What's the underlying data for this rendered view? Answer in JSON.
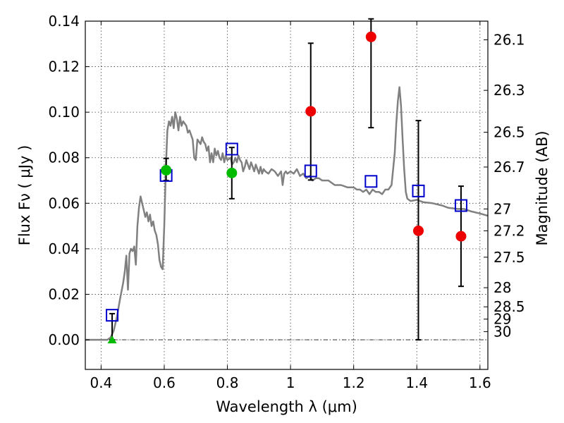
{
  "chart_data": {
    "type": "scatter",
    "title": "",
    "xlabel": "Wavelength  λ (μm)",
    "ylabel": "Flux  Fν  ( μJy )",
    "ylabel_right": "Magnitude (AB)",
    "xlim": [
      0.35,
      1.625
    ],
    "ylim": [
      -0.013,
      0.14
    ],
    "grid": true,
    "x_ticks": [
      0.4,
      0.6,
      0.8,
      1.0,
      1.2,
      1.4,
      1.6
    ],
    "x_tick_labels": [
      "0.4",
      "0.6",
      "0.8",
      "1",
      "1.2",
      "1.4",
      "1.6"
    ],
    "y_ticks": [
      0.0,
      0.02,
      0.04,
      0.06,
      0.08,
      0.1,
      0.12,
      0.14
    ],
    "y_tick_labels": [
      "0.00",
      "0.02",
      "0.04",
      "0.06",
      "0.08",
      "0.10",
      "0.12",
      "0.14"
    ],
    "right_ticks": [
      {
        "label": "26.1",
        "flux": 0.1318
      },
      {
        "label": "26.3",
        "flux": 0.1096
      },
      {
        "label": "26.5",
        "flux": 0.0912
      },
      {
        "label": "26.7",
        "flux": 0.0759
      },
      {
        "label": "27",
        "flux": 0.0575
      },
      {
        "label": "27.2",
        "flux": 0.0479
      },
      {
        "label": "27.5",
        "flux": 0.0363
      },
      {
        "label": "28",
        "flux": 0.0229
      },
      {
        "label": "28.5",
        "flux": 0.0145
      },
      {
        "label": "29",
        "flux": 0.0091
      },
      {
        "label": "30",
        "flux": 0.0036
      }
    ],
    "series": [
      {
        "marker": "open-square",
        "color": "#0000cc",
        "points": [
          {
            "x": 0.435,
            "y": 0.0108
          },
          {
            "x": 0.606,
            "y": 0.0722
          },
          {
            "x": 0.814,
            "y": 0.0838
          },
          {
            "x": 1.064,
            "y": 0.0742
          },
          {
            "x": 1.255,
            "y": 0.0696
          },
          {
            "x": 1.405,
            "y": 0.0654
          },
          {
            "x": 1.54,
            "y": 0.059
          }
        ]
      },
      {
        "marker": "circle",
        "color": "#00bb00",
        "points": [
          {
            "x": 0.606,
            "y": 0.0745,
            "yerr_lo": 0.07,
            "yerr_hi": 0.0797
          },
          {
            "x": 0.814,
            "y": 0.0733,
            "yerr_lo": 0.062,
            "yerr_hi": 0.0845
          }
        ]
      },
      {
        "marker": "circle",
        "color": "#ee0000",
        "points": [
          {
            "x": 1.064,
            "y": 0.1004,
            "yerr_lo": 0.0702,
            "yerr_hi": 0.1303
          },
          {
            "x": 1.255,
            "y": 0.1331,
            "yerr_lo": 0.0932,
            "yerr_hi": 0.141
          },
          {
            "x": 1.405,
            "y": 0.0479,
            "yerr_lo": 0.0,
            "yerr_hi": 0.0963
          },
          {
            "x": 1.54,
            "y": 0.0455,
            "yerr_lo": 0.0235,
            "yerr_hi": 0.0675
          }
        ]
      },
      {
        "marker": "triangle",
        "color": "#00bb00",
        "points": [
          {
            "x": 0.435,
            "y": 0.0,
            "yerr_lo": 0.0,
            "yerr_hi": 0.0115
          }
        ]
      },
      {
        "marker": "line",
        "color": "#808080",
        "points_xy": [
          [
            0.35,
            0.0
          ],
          [
            0.42,
            0.0
          ],
          [
            0.43,
            0.001
          ],
          [
            0.44,
            0.004
          ],
          [
            0.45,
            0.01
          ],
          [
            0.46,
            0.018
          ],
          [
            0.47,
            0.025
          ],
          [
            0.475,
            0.03
          ],
          [
            0.48,
            0.037
          ],
          [
            0.485,
            0.022
          ],
          [
            0.49,
            0.038
          ],
          [
            0.495,
            0.04
          ],
          [
            0.5,
            0.039
          ],
          [
            0.505,
            0.041
          ],
          [
            0.51,
            0.033
          ],
          [
            0.515,
            0.05
          ],
          [
            0.52,
            0.058
          ],
          [
            0.525,
            0.063
          ],
          [
            0.53,
            0.06
          ],
          [
            0.535,
            0.057
          ],
          [
            0.54,
            0.054
          ],
          [
            0.545,
            0.056
          ],
          [
            0.55,
            0.052
          ],
          [
            0.555,
            0.055
          ],
          [
            0.56,
            0.05
          ],
          [
            0.565,
            0.052
          ],
          [
            0.57,
            0.048
          ],
          [
            0.575,
            0.046
          ],
          [
            0.58,
            0.042
          ],
          [
            0.585,
            0.035
          ],
          [
            0.59,
            0.032
          ],
          [
            0.595,
            0.031
          ],
          [
            0.6,
            0.05
          ],
          [
            0.605,
            0.075
          ],
          [
            0.61,
            0.092
          ],
          [
            0.615,
            0.096
          ],
          [
            0.62,
            0.094
          ],
          [
            0.625,
            0.098
          ],
          [
            0.63,
            0.093
          ],
          [
            0.635,
            0.1
          ],
          [
            0.64,
            0.097
          ],
          [
            0.645,
            0.092
          ],
          [
            0.65,
            0.098
          ],
          [
            0.655,
            0.094
          ],
          [
            0.66,
            0.096
          ],
          [
            0.665,
            0.095
          ],
          [
            0.67,
            0.094
          ],
          [
            0.675,
            0.091
          ],
          [
            0.68,
            0.092
          ],
          [
            0.685,
            0.09
          ],
          [
            0.69,
            0.088
          ],
          [
            0.695,
            0.08
          ],
          [
            0.7,
            0.079
          ],
          [
            0.705,
            0.088
          ],
          [
            0.71,
            0.087
          ],
          [
            0.715,
            0.086
          ],
          [
            0.72,
            0.089
          ],
          [
            0.725,
            0.087
          ],
          [
            0.73,
            0.086
          ],
          [
            0.735,
            0.083
          ],
          [
            0.74,
            0.085
          ],
          [
            0.745,
            0.078
          ],
          [
            0.75,
            0.082
          ],
          [
            0.755,
            0.078
          ],
          [
            0.76,
            0.084
          ],
          [
            0.765,
            0.081
          ],
          [
            0.77,
            0.083
          ],
          [
            0.775,
            0.08
          ],
          [
            0.78,
            0.079
          ],
          [
            0.785,
            0.082
          ],
          [
            0.79,
            0.078
          ],
          [
            0.795,
            0.081
          ],
          [
            0.8,
            0.079
          ],
          [
            0.81,
            0.08
          ],
          [
            0.815,
            0.077
          ],
          [
            0.82,
            0.078
          ],
          [
            0.825,
            0.08
          ],
          [
            0.83,
            0.078
          ],
          [
            0.835,
            0.081
          ],
          [
            0.84,
            0.079
          ],
          [
            0.845,
            0.078
          ],
          [
            0.85,
            0.074
          ],
          [
            0.855,
            0.076
          ],
          [
            0.86,
            0.079
          ],
          [
            0.865,
            0.077
          ],
          [
            0.87,
            0.075
          ],
          [
            0.875,
            0.078
          ],
          [
            0.88,
            0.076
          ],
          [
            0.885,
            0.074
          ],
          [
            0.89,
            0.077
          ],
          [
            0.895,
            0.075
          ],
          [
            0.9,
            0.073
          ],
          [
            0.905,
            0.076
          ],
          [
            0.91,
            0.073
          ],
          [
            0.915,
            0.075
          ],
          [
            0.92,
            0.074
          ],
          [
            0.93,
            0.073
          ],
          [
            0.94,
            0.075
          ],
          [
            0.95,
            0.074
          ],
          [
            0.96,
            0.072
          ],
          [
            0.97,
            0.074
          ],
          [
            0.975,
            0.068
          ],
          [
            0.98,
            0.073
          ],
          [
            0.985,
            0.074
          ],
          [
            0.99,
            0.073
          ],
          [
            1.0,
            0.074
          ],
          [
            1.01,
            0.073
          ],
          [
            1.02,
            0.075
          ],
          [
            1.03,
            0.072
          ],
          [
            1.04,
            0.073
          ],
          [
            1.05,
            0.071
          ],
          [
            1.06,
            0.072
          ],
          [
            1.07,
            0.07
          ],
          [
            1.08,
            0.071
          ],
          [
            1.09,
            0.071
          ],
          [
            1.1,
            0.07
          ],
          [
            1.12,
            0.07
          ],
          [
            1.14,
            0.068
          ],
          [
            1.16,
            0.068
          ],
          [
            1.18,
            0.067
          ],
          [
            1.2,
            0.067
          ],
          [
            1.21,
            0.066
          ],
          [
            1.22,
            0.066
          ],
          [
            1.23,
            0.065
          ],
          [
            1.24,
            0.066
          ],
          [
            1.25,
            0.064
          ],
          [
            1.26,
            0.066
          ],
          [
            1.27,
            0.065
          ],
          [
            1.28,
            0.065
          ],
          [
            1.29,
            0.064
          ],
          [
            1.3,
            0.066
          ],
          [
            1.31,
            0.066
          ],
          [
            1.32,
            0.068
          ],
          [
            1.33,
            0.082
          ],
          [
            1.335,
            0.095
          ],
          [
            1.34,
            0.105
          ],
          [
            1.345,
            0.111
          ],
          [
            1.35,
            0.103
          ],
          [
            1.355,
            0.088
          ],
          [
            1.36,
            0.075
          ],
          [
            1.365,
            0.065
          ],
          [
            1.37,
            0.062
          ],
          [
            1.38,
            0.061
          ],
          [
            1.4,
            0.0615
          ],
          [
            1.42,
            0.0605
          ],
          [
            1.45,
            0.06
          ],
          [
            1.48,
            0.059
          ],
          [
            1.5,
            0.058
          ],
          [
            1.53,
            0.0575
          ],
          [
            1.55,
            0.0575
          ],
          [
            1.57,
            0.0565
          ],
          [
            1.6,
            0.0555
          ],
          [
            1.625,
            0.0545
          ]
        ]
      }
    ]
  }
}
